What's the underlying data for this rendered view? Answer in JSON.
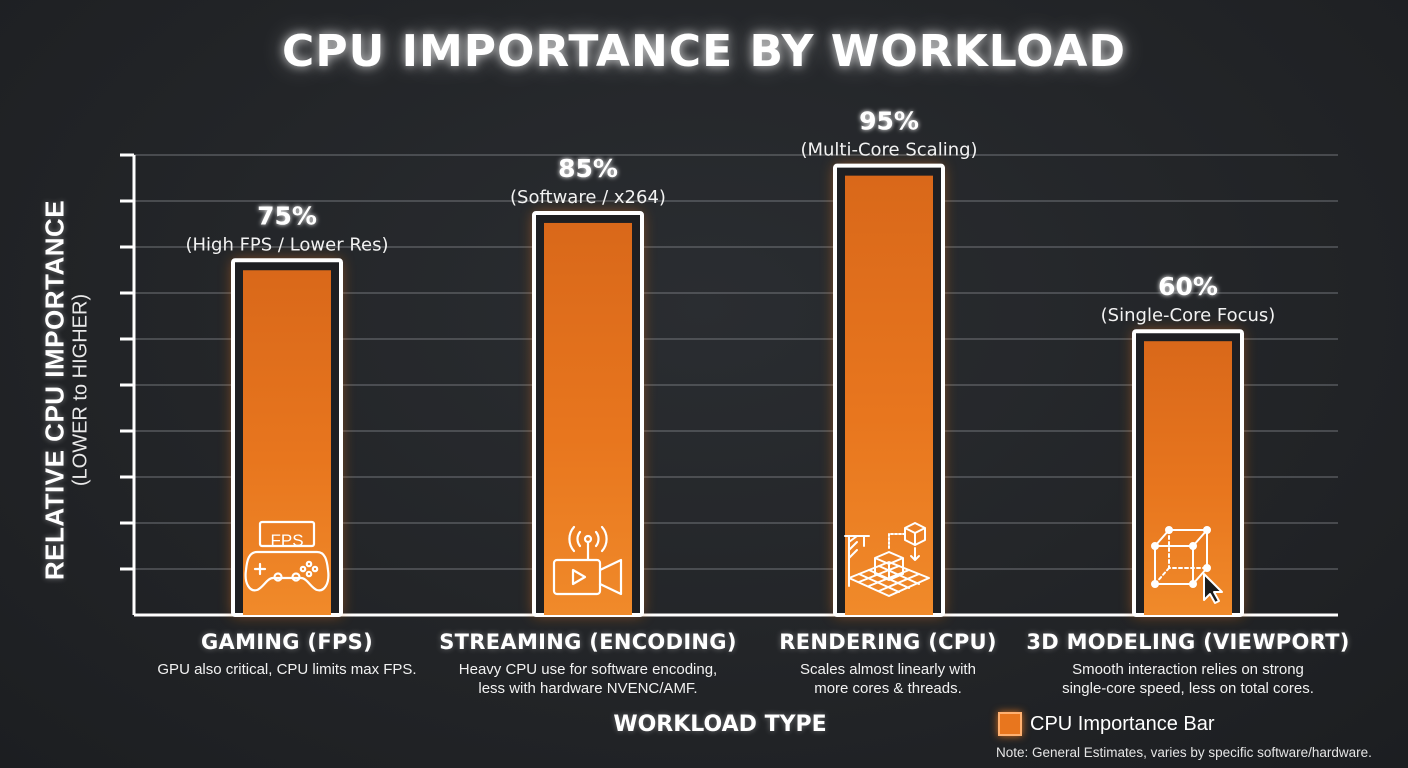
{
  "chart_data": {
    "type": "bar",
    "title": "CPU IMPORTANCE BY WORKLOAD",
    "ylabel": "RELATIVE CPU IMPORTANCE",
    "ylabel_sub": "(LOWER to HIGHER)",
    "xlabel": "WORKLOAD TYPE",
    "ylim": [
      0,
      100
    ],
    "grid": true,
    "legend_position": "bottom-right",
    "categories": [
      "GAMING (FPS)",
      "STREAMING (ENCODING)",
      "RENDERING (CPU)",
      "3D MODELING (VIEWPORT)"
    ],
    "series": [
      {
        "name": "CPU Importance Bar",
        "color": "#e8761e",
        "values": [
          75,
          85,
          95,
          60
        ],
        "value_labels": [
          "75%",
          "85%",
          "95%",
          "60%"
        ],
        "notes": [
          "(High FPS / Lower Res)",
          "(Software / x264)",
          "(Multi-Core Scaling)",
          "(Single-Core Focus)"
        ]
      }
    ],
    "icons": [
      "gamepad-fps-icon",
      "broadcast-video-icon",
      "render-cubes-icon",
      "wireframe-cube-cursor-icon"
    ],
    "icon_text": [
      "FPS"
    ],
    "descriptions": [
      [
        "GPU also critical, CPU limits max FPS."
      ],
      [
        "Heavy CPU use for software encoding,",
        "less with hardware NVENC/AMF."
      ],
      [
        "Scales almost linearly with",
        "more cores & threads."
      ],
      [
        "Smooth interaction relies on strong",
        "single-core speed, less on total cores."
      ]
    ],
    "legend": "CPU Importance Bar",
    "note": "Note: General Estimates, varies by specific software/hardware."
  }
}
